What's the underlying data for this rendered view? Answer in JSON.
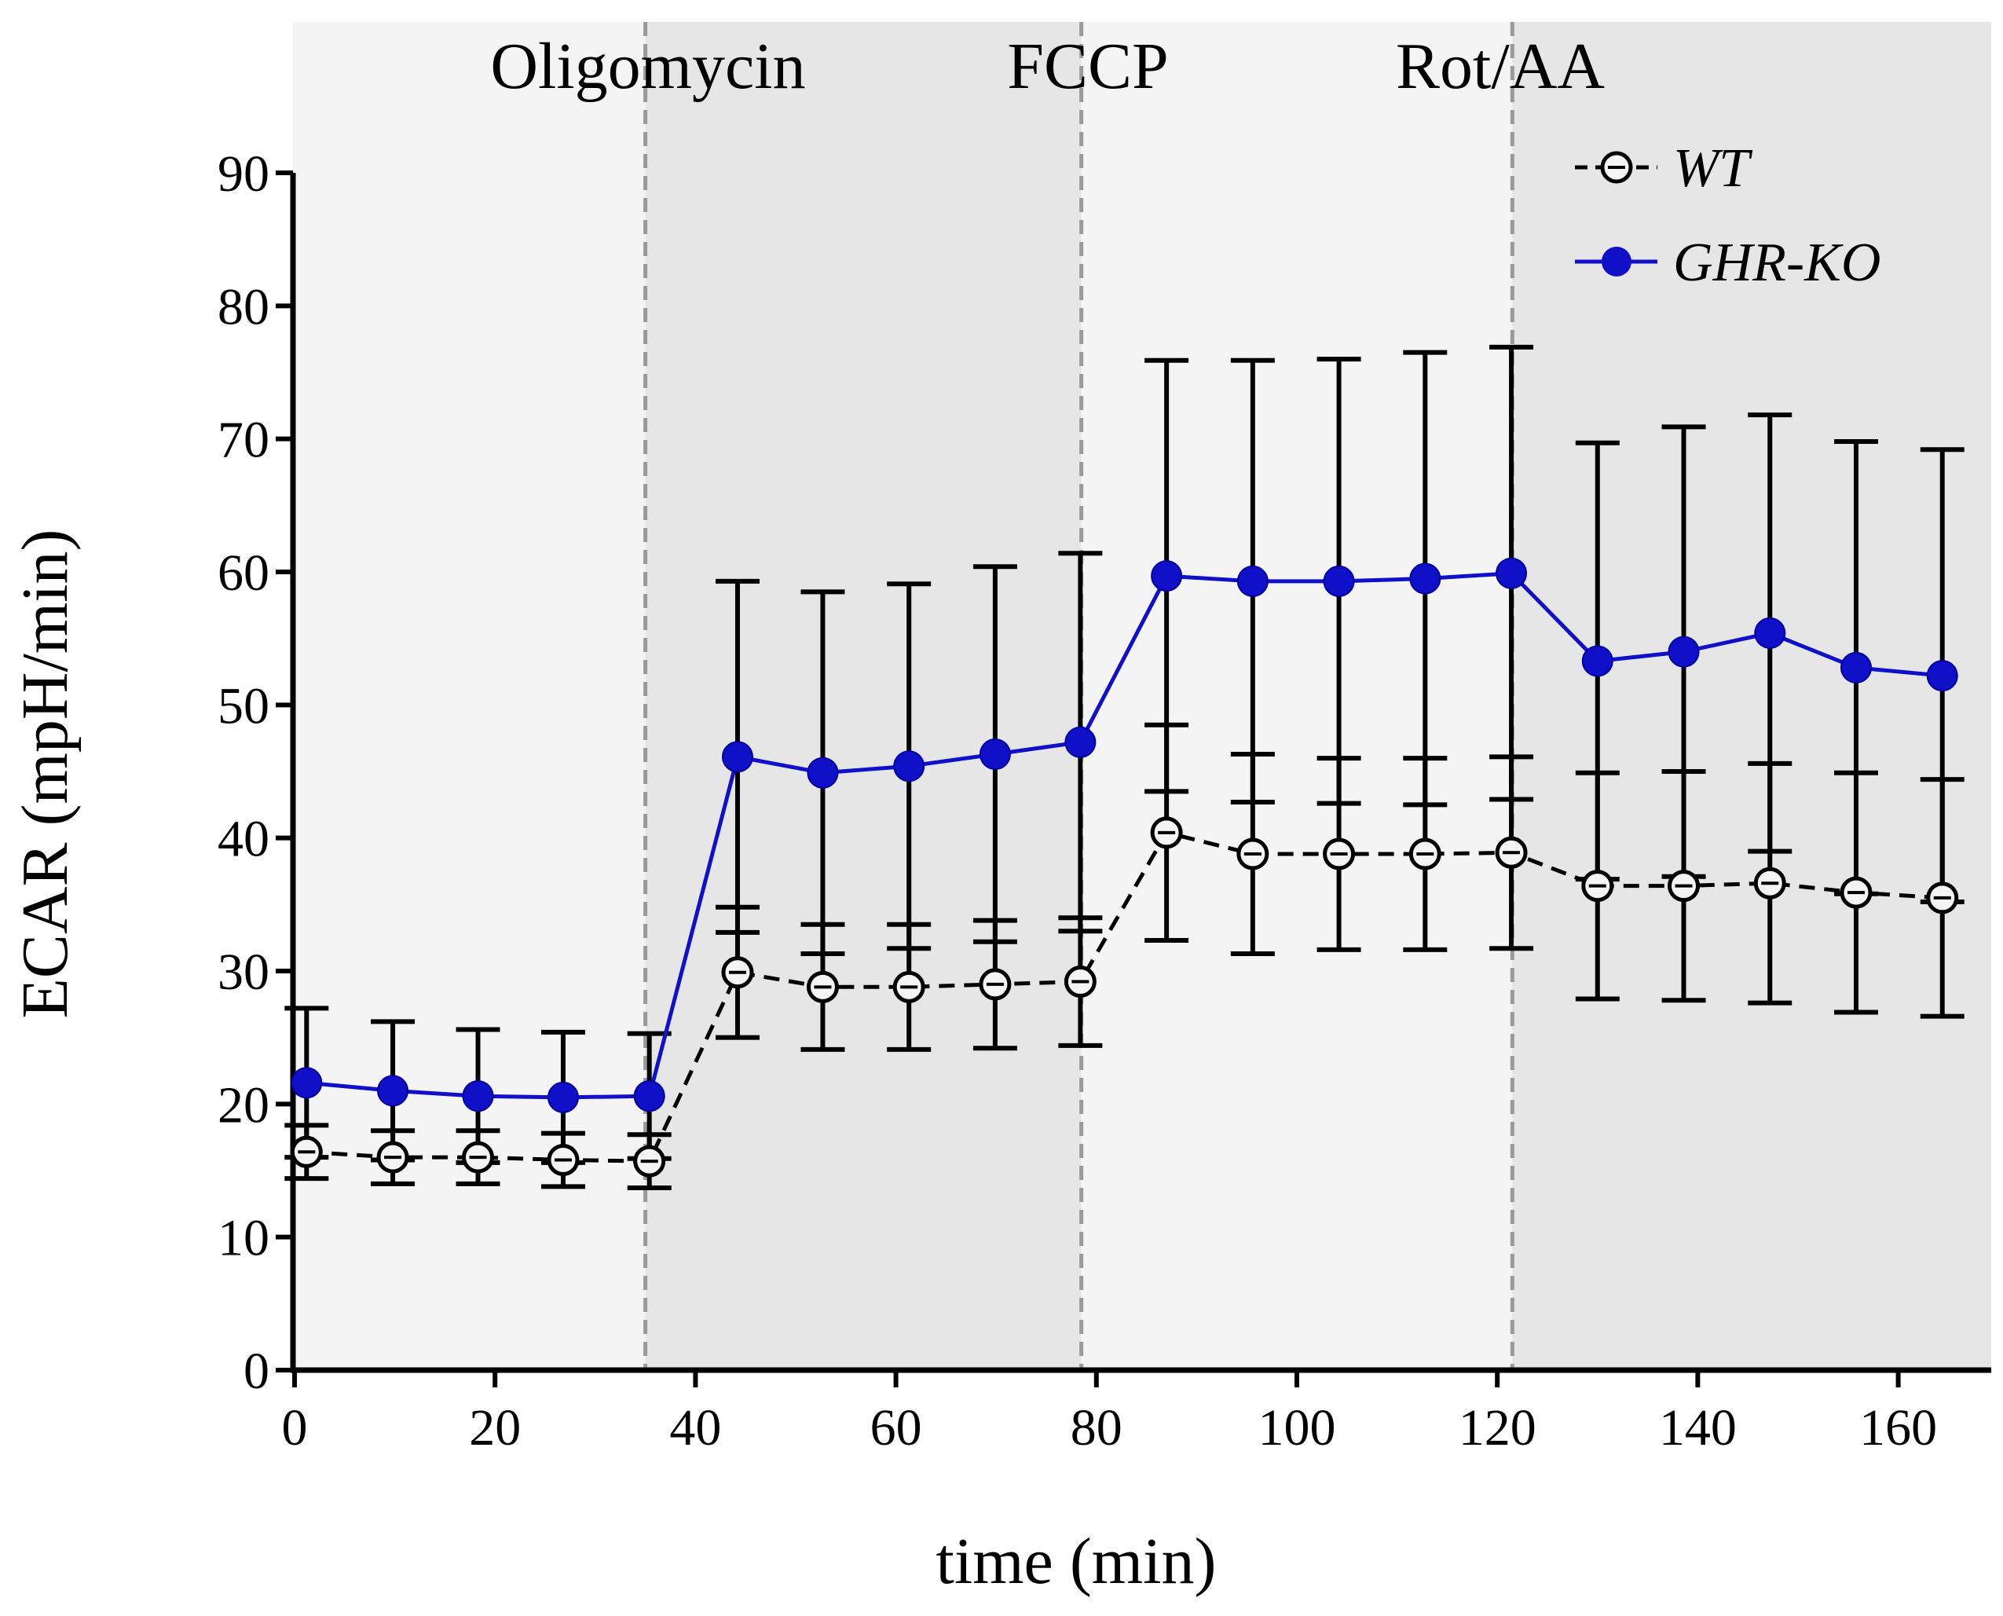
{
  "chart_data": {
    "type": "line",
    "title": "",
    "xlabel": "time (min)",
    "ylabel": "ECAR (mpH/min)",
    "xlim": [
      0,
      170
    ],
    "ylim": [
      0,
      90
    ],
    "xticks": [
      0,
      20,
      40,
      60,
      80,
      100,
      120,
      140,
      160
    ],
    "yticks": [
      0,
      10,
      20,
      30,
      40,
      50,
      60,
      70,
      80,
      90
    ],
    "grid": false,
    "legend_position": "top-right",
    "injections": [
      {
        "label": "Oligomycin",
        "time": 35
      },
      {
        "label": "FCCP",
        "time": 78.5
      },
      {
        "label": "Rot/AA",
        "time": 121.5
      }
    ],
    "shaded_bands": [
      {
        "from": 0,
        "to": 35,
        "shade": "light"
      },
      {
        "from": 35,
        "to": 78.5,
        "shade": "dark"
      },
      {
        "from": 78.5,
        "to": 121.5,
        "shade": "light"
      },
      {
        "from": 121.5,
        "to": 170,
        "shade": "dark"
      }
    ],
    "x": [
      1.2,
      9.8,
      18.3,
      26.8,
      35.4,
      44.2,
      52.7,
      61.3,
      69.9,
      78.4,
      87.0,
      95.6,
      104.2,
      112.8,
      121.4,
      130.0,
      138.6,
      147.2,
      155.8,
      164.4
    ],
    "series": [
      {
        "name": "WT",
        "style": "dashed-open-circle",
        "color": "#000000",
        "values": [
          16.4,
          16.0,
          16.0,
          15.8,
          15.7,
          29.9,
          28.8,
          28.8,
          29.0,
          29.2,
          40.4,
          38.8,
          38.8,
          38.8,
          38.9,
          36.4,
          36.4,
          36.6,
          35.9,
          35.5
        ],
        "error": [
          2.0,
          2.0,
          2.0,
          2.0,
          2.0,
          4.9,
          4.7,
          4.7,
          4.8,
          4.8,
          8.1,
          7.5,
          7.2,
          7.2,
          7.2,
          8.5,
          8.6,
          9.0,
          9.0,
          8.9
        ]
      },
      {
        "name": "GHR-KO",
        "style": "solid-filled-circle",
        "color": "#1010c8",
        "values": [
          21.6,
          21.0,
          20.6,
          20.5,
          20.6,
          46.1,
          44.9,
          45.4,
          46.3,
          47.2,
          59.7,
          59.3,
          59.3,
          59.5,
          59.9,
          53.3,
          54.0,
          55.4,
          52.8,
          52.2
        ],
        "error": [
          5.6,
          5.2,
          5.0,
          4.9,
          4.7,
          13.2,
          13.6,
          13.7,
          14.1,
          14.2,
          16.2,
          16.6,
          16.7,
          17.0,
          17.0,
          16.4,
          16.9,
          16.4,
          17.0,
          17.0
        ]
      }
    ]
  }
}
